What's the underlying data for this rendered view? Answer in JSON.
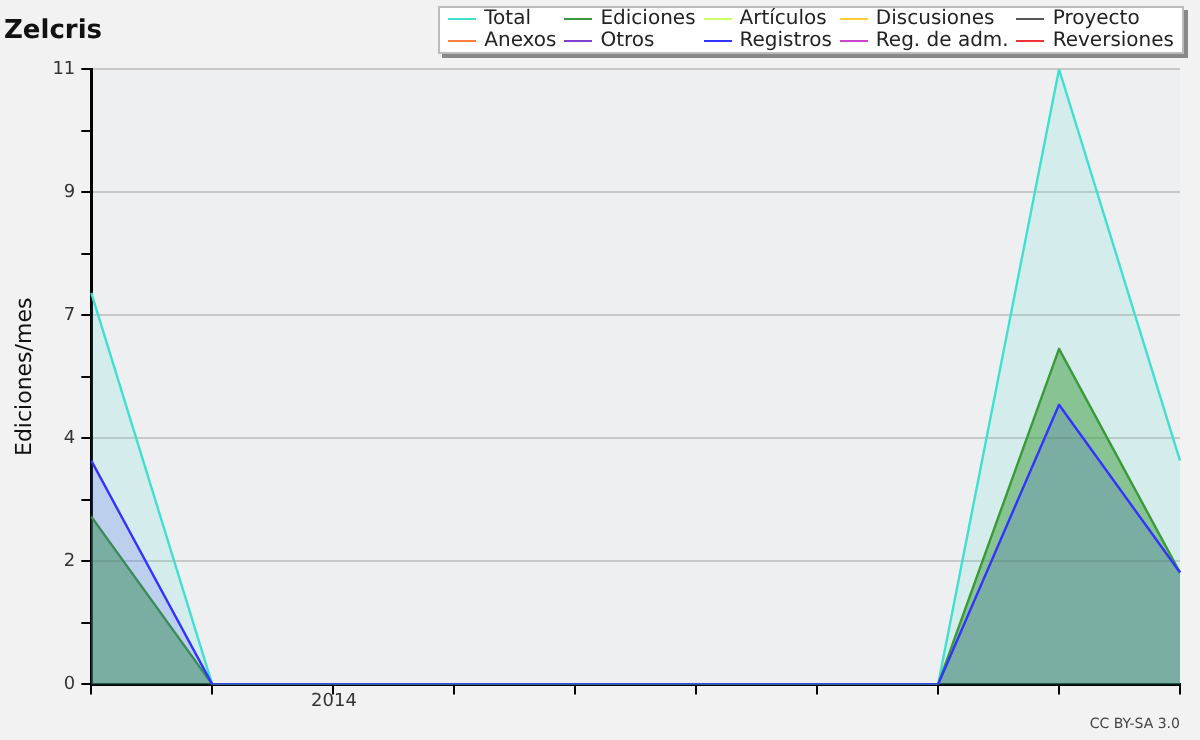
{
  "chart_data": {
    "type": "area",
    "title": "Zelcris",
    "ylabel": "Ediciones/mes",
    "annotations": [
      "2014",
      "CC BY-SA 3.0"
    ],
    "categories": [
      null,
      null,
      null,
      null,
      null,
      null,
      null,
      null,
      null,
      null
    ],
    "ylim": [
      0,
      11
    ],
    "yticks": [
      {
        "value": 0,
        "label": "0"
      },
      {
        "value": 1.1,
        "label": null
      },
      {
        "value": 2.2,
        "label": "2"
      },
      {
        "value": 3.3,
        "label": null
      },
      {
        "value": 4.4,
        "label": "4"
      },
      {
        "value": 5.5,
        "label": null
      },
      {
        "value": 6.6,
        "label": "7"
      },
      {
        "value": 7.7,
        "label": null
      },
      {
        "value": 8.8,
        "label": "9"
      },
      {
        "value": 9.9,
        "label": null
      },
      {
        "value": 11,
        "label": "11"
      }
    ],
    "grid": "y",
    "legend": "top right",
    "marker": "none",
    "series": [
      {
        "name": "Total",
        "color": "#40e0d0",
        "values": [
          7,
          0,
          0,
          0,
          0,
          0,
          0,
          0,
          11,
          4
        ]
      },
      {
        "name": "Ediciones",
        "color": "#3a9a3a",
        "values": [
          3,
          0,
          0,
          0,
          0,
          0,
          0,
          0,
          6,
          2
        ]
      },
      {
        "name": "Artículos",
        "color": "#ccff66",
        "values": [
          null,
          null,
          null,
          null,
          null,
          null,
          null,
          null,
          null,
          null
        ]
      },
      {
        "name": "Discusiones",
        "color": "#ffcc33",
        "values": [
          null,
          null,
          null,
          null,
          null,
          null,
          null,
          null,
          null,
          null
        ]
      },
      {
        "name": "Proyecto",
        "color": "#555555",
        "values": [
          null,
          null,
          null,
          null,
          null,
          null,
          null,
          null,
          null,
          null
        ]
      },
      {
        "name": "Anexos",
        "color": "#ff7f3f",
        "values": [
          null,
          null,
          null,
          null,
          null,
          null,
          null,
          null,
          null,
          null
        ]
      },
      {
        "name": "Otros",
        "color": "#7f3fcf",
        "values": [
          null,
          null,
          null,
          null,
          null,
          null,
          null,
          null,
          null,
          null
        ]
      },
      {
        "name": "Registros",
        "color": "#3333ff",
        "values": [
          4,
          0,
          0,
          0,
          0,
          0,
          0,
          0,
          5,
          2
        ]
      },
      {
        "name": "Reg. de adm.",
        "color": "#cc44cc",
        "values": [
          null,
          null,
          null,
          null,
          null,
          null,
          null,
          null,
          null,
          null
        ]
      },
      {
        "name": "Reversiones",
        "color": "#ee3333",
        "values": [
          null,
          null,
          null,
          null,
          null,
          null,
          null,
          null,
          null,
          null
        ]
      }
    ]
  }
}
